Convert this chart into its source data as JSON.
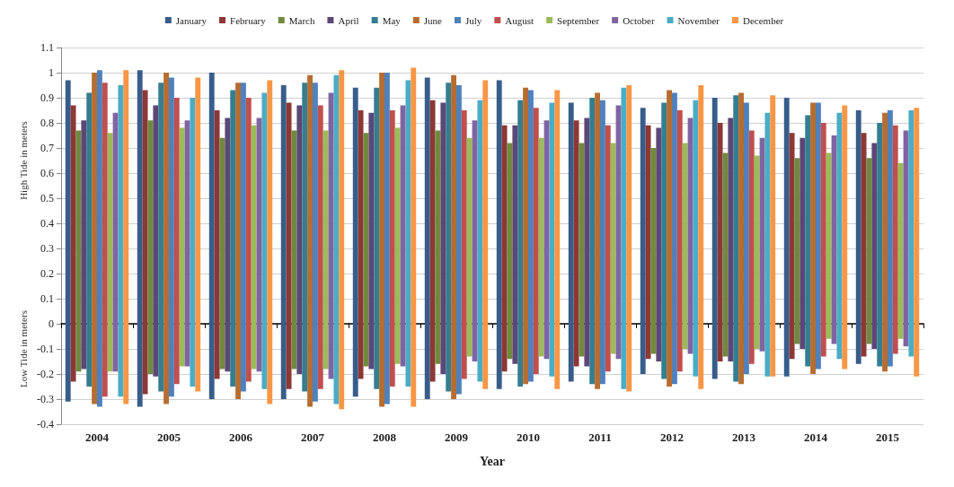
{
  "chart_data": {
    "type": "bar",
    "xlabel": "Year",
    "ylabel": "High Tide in meters",
    "annotations": [
      "Low Tide in meters"
    ],
    "categories": [
      "2004",
      "2005",
      "2006",
      "2007",
      "2008",
      "2009",
      "2010",
      "2011",
      "2012",
      "2013",
      "2014",
      "2015"
    ],
    "ylim": [
      -0.4,
      1.1
    ],
    "yticks": [
      -0.4,
      -0.3,
      -0.2,
      -0.1,
      0,
      0.1,
      0.2,
      0.3,
      0.4,
      0.5,
      0.6,
      0.7,
      0.8,
      0.9,
      1,
      1.1
    ],
    "grid": "y",
    "legend": "top",
    "series": [
      {
        "name": "January",
        "color": "#385d8a",
        "base": [
          -0.31,
          -0.33,
          -0.3,
          -0.3,
          -0.29,
          -0.3,
          -0.26,
          -0.23,
          -0.2,
          -0.22,
          -0.21,
          -0.16
        ],
        "values": [
          1.28,
          1.34,
          1.3,
          1.25,
          1.23,
          1.28,
          1.23,
          1.11,
          1.06,
          1.12,
          1.11,
          1.01
        ]
      },
      {
        "name": "February",
        "color": "#8c3836",
        "base": [
          -0.23,
          -0.28,
          -0.22,
          -0.26,
          -0.22,
          -0.23,
          -0.19,
          -0.17,
          -0.14,
          -0.15,
          -0.14,
          -0.13
        ],
        "values": [
          1.1,
          1.21,
          1.07,
          1.14,
          1.07,
          1.12,
          0.98,
          0.98,
          0.93,
          0.95,
          0.9,
          0.89
        ]
      },
      {
        "name": "March",
        "color": "#71893f",
        "base": [
          -0.19,
          -0.2,
          -0.18,
          -0.18,
          -0.17,
          -0.16,
          -0.14,
          -0.13,
          -0.12,
          -0.13,
          -0.08,
          -0.08
        ],
        "values": [
          0.96,
          1.01,
          0.92,
          0.95,
          0.93,
          0.93,
          0.86,
          0.85,
          0.82,
          0.81,
          0.74,
          0.74
        ]
      },
      {
        "name": "April",
        "color": "#5c4776",
        "base": [
          -0.18,
          -0.21,
          -0.19,
          -0.2,
          -0.18,
          -0.2,
          -0.16,
          -0.17,
          -0.15,
          -0.15,
          -0.1,
          -0.1
        ],
        "values": [
          0.99,
          1.08,
          1.01,
          1.07,
          1.02,
          1.08,
          0.95,
          0.99,
          0.93,
          0.97,
          0.84,
          0.82
        ]
      },
      {
        "name": "May",
        "color": "#357d91",
        "base": [
          -0.25,
          -0.27,
          -0.25,
          -0.27,
          -0.26,
          -0.27,
          -0.25,
          -0.24,
          -0.22,
          -0.23,
          -0.17,
          -0.17
        ],
        "values": [
          1.17,
          1.23,
          1.18,
          1.23,
          1.2,
          1.23,
          1.14,
          1.14,
          1.1,
          1.14,
          1.0,
          0.97
        ]
      },
      {
        "name": "June",
        "color": "#b66d31",
        "base": [
          -0.32,
          -0.32,
          -0.3,
          -0.33,
          -0.33,
          -0.3,
          -0.24,
          -0.26,
          -0.25,
          -0.24,
          -0.2,
          -0.19
        ],
        "values": [
          1.32,
          1.32,
          1.26,
          1.32,
          1.33,
          1.29,
          1.18,
          1.18,
          1.18,
          1.16,
          1.08,
          1.03
        ]
      },
      {
        "name": "July",
        "color": "#4f81bd",
        "base": [
          -0.33,
          -0.29,
          -0.27,
          -0.31,
          -0.32,
          -0.28,
          -0.23,
          -0.24,
          -0.24,
          -0.2,
          -0.18,
          -0.17
        ],
        "values": [
          1.34,
          1.27,
          1.23,
          1.27,
          1.32,
          1.23,
          1.16,
          1.13,
          1.16,
          1.08,
          1.06,
          1.02
        ]
      },
      {
        "name": "August",
        "color": "#c0504d",
        "base": [
          -0.29,
          -0.24,
          -0.23,
          -0.26,
          -0.25,
          -0.22,
          -0.2,
          -0.19,
          -0.19,
          -0.16,
          -0.13,
          -0.12
        ],
        "values": [
          1.25,
          1.14,
          1.13,
          1.13,
          1.1,
          1.07,
          1.06,
          0.98,
          1.04,
          0.93,
          0.93,
          0.91
        ]
      },
      {
        "name": "September",
        "color": "#9bbb59",
        "base": [
          -0.19,
          -0.17,
          -0.18,
          -0.18,
          -0.16,
          -0.13,
          -0.13,
          -0.12,
          -0.1,
          -0.1,
          -0.06,
          -0.06
        ],
        "values": [
          0.95,
          0.95,
          0.97,
          0.95,
          0.94,
          0.87,
          0.87,
          0.84,
          0.82,
          0.77,
          0.74,
          0.7
        ]
      },
      {
        "name": "October",
        "color": "#8064a2",
        "base": [
          -0.19,
          -0.17,
          -0.19,
          -0.22,
          -0.17,
          -0.15,
          -0.14,
          -0.14,
          -0.12,
          -0.11,
          -0.08,
          -0.09
        ],
        "values": [
          1.03,
          0.98,
          1.01,
          1.14,
          1.04,
          0.96,
          0.95,
          1.01,
          0.94,
          0.85,
          0.83,
          0.86
        ]
      },
      {
        "name": "November",
        "color": "#4bacc6",
        "base": [
          -0.29,
          -0.25,
          -0.26,
          -0.32,
          -0.25,
          -0.23,
          -0.21,
          -0.26,
          -0.21,
          -0.21,
          -0.14,
          -0.13
        ],
        "values": [
          1.24,
          1.15,
          1.18,
          1.31,
          1.22,
          1.12,
          1.09,
          1.2,
          1.1,
          1.05,
          0.98,
          0.98
        ]
      },
      {
        "name": "December",
        "color": "#f79646",
        "base": [
          -0.32,
          -0.27,
          -0.32,
          -0.34,
          -0.33,
          -0.26,
          -0.26,
          -0.27,
          -0.26,
          -0.21,
          -0.18,
          -0.21
        ],
        "values": [
          1.33,
          1.25,
          1.29,
          1.35,
          1.35,
          1.23,
          1.19,
          1.22,
          1.21,
          1.12,
          1.05,
          1.07
        ]
      }
    ]
  }
}
